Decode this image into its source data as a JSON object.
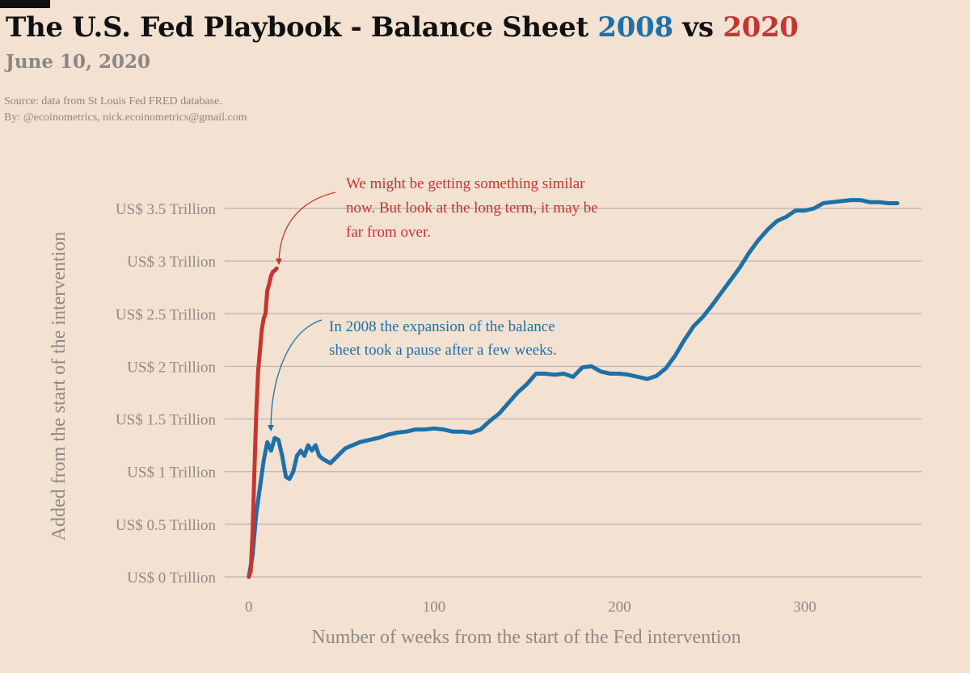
{
  "header": {
    "title_main": "The U.S. Fed Playbook - Balance Sheet ",
    "title_2008": "2008",
    "title_vs": " vs ",
    "title_2020": "2020",
    "date": "June 10, 2020",
    "source": "Source: data from  St Louis Fed FRED database.",
    "byline": "By: @ecoinometrics, nick.ecoinometrics@gmail.com"
  },
  "colors": {
    "background": "#f3e1d1",
    "series_2008": "#1d70a8",
    "series_2020": "#c53632",
    "grid": "#b9b4b3",
    "muted_text": "#8f8a87"
  },
  "chart_data": {
    "type": "line",
    "xlabel": "Number of weeks from the start of the Fed intervention",
    "ylabel": "Added from the start of the intervention",
    "xlim": [
      -13,
      363
    ],
    "ylim": [
      0,
      3.5
    ],
    "x_ticks": [
      0,
      100,
      200,
      300
    ],
    "y_ticks": [
      0,
      0.5,
      1,
      1.5,
      2,
      2.5,
      3,
      3.5
    ],
    "y_tick_labels": [
      "US$ 0 Trillion",
      "US$ 0.5 Trillion",
      "US$ 1 Trillion",
      "US$ 1.5 Trillion",
      "US$ 2 Trillion",
      "US$ 2.5 Trillion",
      "US$ 3 Trillion",
      "US$ 3.5 Trillion"
    ],
    "grid": "horizontal",
    "series": [
      {
        "name": "2008",
        "color": "#1d70a8",
        "x": [
          0,
          2,
          4,
          6,
          8,
          10,
          12,
          14,
          16,
          18,
          20,
          22,
          24,
          26,
          28,
          30,
          32,
          34,
          36,
          38,
          40,
          44,
          48,
          52,
          56,
          60,
          65,
          70,
          75,
          80,
          85,
          90,
          95,
          100,
          105,
          110,
          115,
          120,
          125,
          130,
          135,
          140,
          145,
          150,
          155,
          160,
          165,
          170,
          175,
          180,
          185,
          190,
          195,
          200,
          205,
          210,
          215,
          220,
          225,
          230,
          235,
          240,
          245,
          250,
          255,
          260,
          265,
          270,
          275,
          280,
          285,
          290,
          295,
          300,
          305,
          310,
          315,
          320,
          325,
          330,
          335,
          340,
          345,
          350
        ],
        "values": [
          0,
          0.2,
          0.6,
          0.85,
          1.1,
          1.28,
          1.2,
          1.32,
          1.3,
          1.15,
          0.95,
          0.93,
          1.0,
          1.15,
          1.2,
          1.15,
          1.25,
          1.2,
          1.25,
          1.15,
          1.12,
          1.08,
          1.15,
          1.22,
          1.25,
          1.28,
          1.3,
          1.32,
          1.35,
          1.37,
          1.38,
          1.4,
          1.4,
          1.41,
          1.4,
          1.38,
          1.38,
          1.37,
          1.4,
          1.48,
          1.55,
          1.65,
          1.75,
          1.83,
          1.93,
          1.93,
          1.92,
          1.93,
          1.9,
          1.99,
          2.0,
          1.95,
          1.93,
          1.93,
          1.92,
          1.9,
          1.88,
          1.91,
          1.98,
          2.1,
          2.25,
          2.38,
          2.47,
          2.58,
          2.7,
          2.82,
          2.94,
          3.08,
          3.2,
          3.3,
          3.38,
          3.42,
          3.48,
          3.48,
          3.5,
          3.55,
          3.56,
          3.57,
          3.58,
          3.58,
          3.56,
          3.56,
          3.55,
          3.55
        ]
      },
      {
        "name": "2020",
        "color": "#c53632",
        "x": [
          0,
          1,
          2,
          3,
          4,
          5,
          6,
          7,
          8,
          9,
          10,
          11,
          12,
          13,
          14,
          15
        ],
        "values": [
          0,
          0.05,
          0.4,
          1.0,
          1.55,
          1.95,
          2.15,
          2.35,
          2.45,
          2.5,
          2.72,
          2.78,
          2.86,
          2.9,
          2.91,
          2.93
        ]
      }
    ],
    "annotations": [
      {
        "series": "2020",
        "lines": [
          "We might be getting something similar",
          "now. But look at the long term, it may be",
          "far from over."
        ]
      },
      {
        "series": "2008",
        "lines": [
          "In 2008 the expansion of the balance",
          "sheet took a pause after a few weeks."
        ]
      }
    ]
  }
}
